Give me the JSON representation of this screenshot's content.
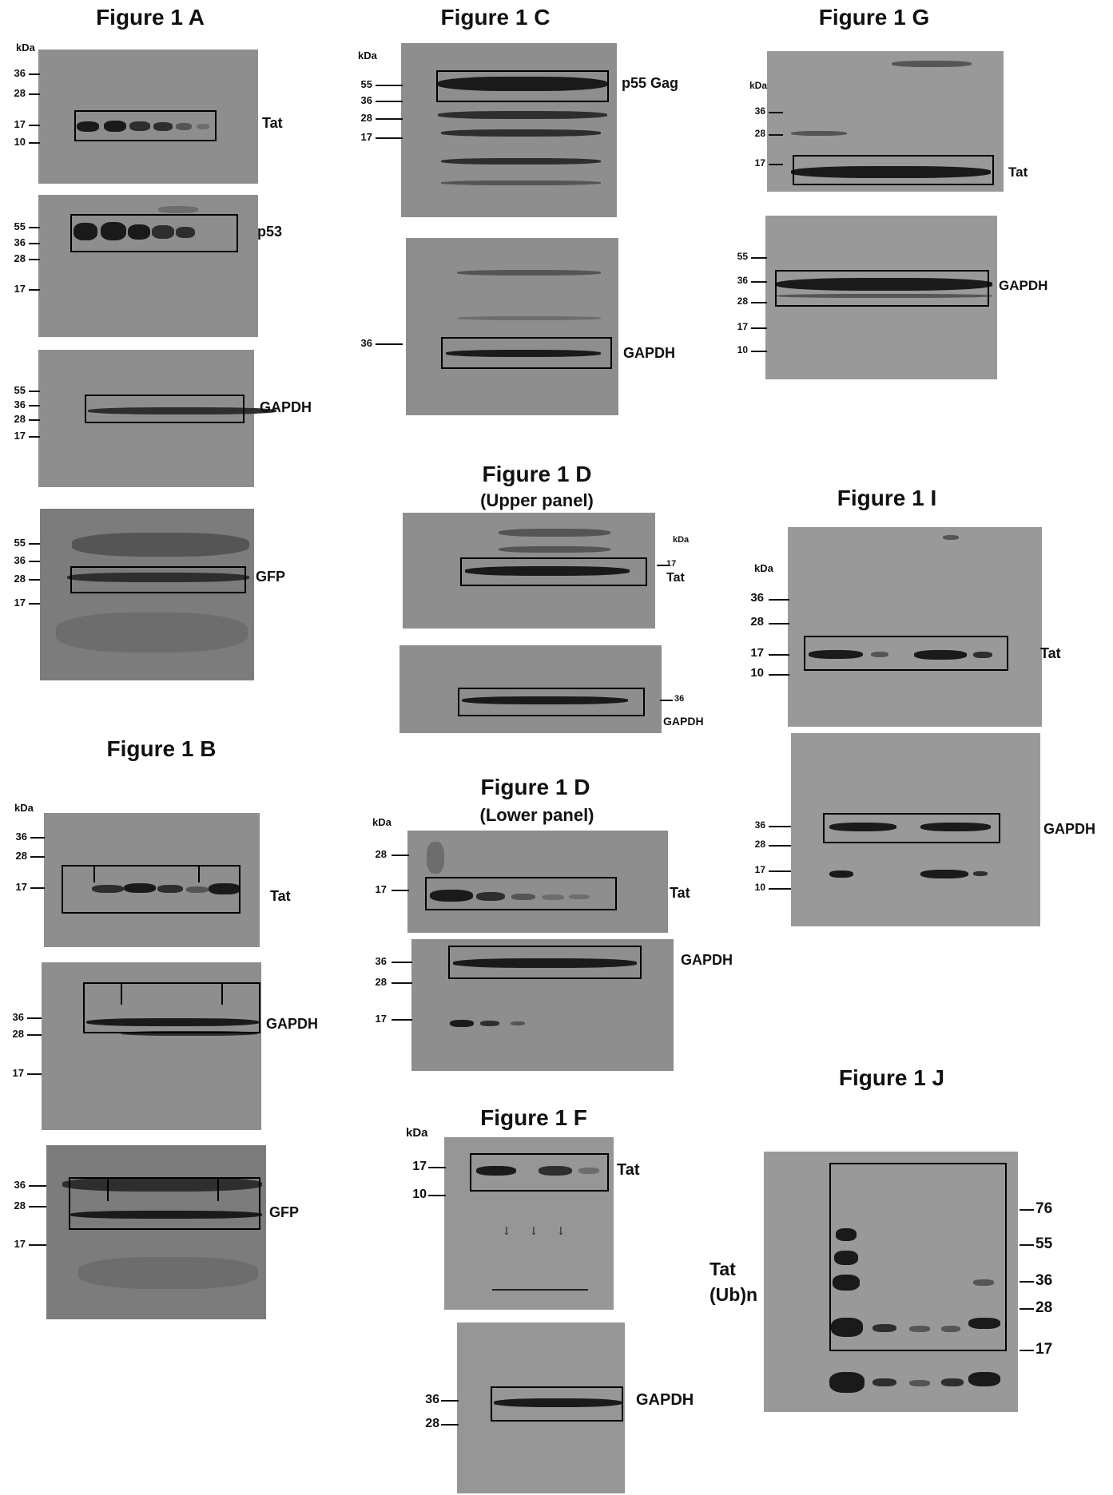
{
  "titles": {
    "a": "Figure 1 A",
    "b": "Figure 1 B",
    "c": "Figure 1 C",
    "d1": "Figure 1 D",
    "d1_sub": "(Upper panel)",
    "d2": "Figure 1 D",
    "d2_sub": "(Lower panel)",
    "f": "Figure 1 F",
    "g": "Figure 1 G",
    "i": "Figure 1 I",
    "j": "Figure 1 J"
  },
  "kda": "kDa",
  "markers": {
    "m10": "10",
    "m17": "17",
    "m28": "28",
    "m36": "36",
    "m55": "55",
    "m76": "76"
  },
  "proteins": {
    "tat": "Tat",
    "p53": "p53",
    "gapdh": "GAPDH",
    "gfp": "GFP",
    "p55gag": "p55 Gag",
    "tat_ub_line1": "Tat",
    "tat_ub_line2": "(Ub)n"
  },
  "colors": {
    "membrane": "#8e8e8e",
    "band": "#1a1a1a",
    "box": "#000000"
  }
}
